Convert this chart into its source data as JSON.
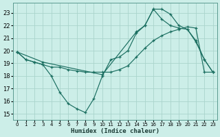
{
  "xlabel": "Humidex (Indice chaleur)",
  "bg_color": "#cceee8",
  "grid_color": "#aad4cc",
  "line_color": "#1a6e60",
  "xlim": [
    -0.5,
    23.5
  ],
  "ylim": [
    14.5,
    23.8
  ],
  "yticks": [
    15,
    16,
    17,
    18,
    19,
    20,
    21,
    22,
    23
  ],
  "xticks": [
    0,
    1,
    2,
    3,
    4,
    5,
    6,
    7,
    8,
    9,
    10,
    11,
    12,
    13,
    14,
    15,
    16,
    17,
    18,
    19,
    20,
    21,
    22,
    23
  ],
  "line1_x": [
    0,
    1,
    2,
    3,
    4,
    5,
    6,
    7,
    8,
    9,
    10,
    11,
    12,
    13,
    14,
    15,
    16,
    17,
    18,
    19,
    20,
    21,
    22,
    23
  ],
  "line1_y": [
    19.9,
    19.3,
    19.1,
    18.9,
    18.0,
    16.7,
    15.8,
    15.4,
    15.1,
    16.2,
    18.0,
    19.3,
    19.5,
    20.0,
    21.4,
    22.0,
    23.3,
    23.3,
    22.9,
    22.0,
    21.7,
    20.7,
    19.3,
    18.3
  ],
  "line2_x": [
    0,
    1,
    2,
    3,
    4,
    5,
    6,
    7,
    8,
    9,
    10,
    11,
    12,
    13,
    14,
    15,
    16,
    17,
    18,
    19,
    20,
    21,
    22,
    23
  ],
  "line2_y": [
    19.9,
    19.3,
    19.1,
    18.9,
    18.7,
    18.7,
    18.5,
    18.4,
    18.3,
    18.3,
    18.3,
    18.3,
    18.5,
    18.8,
    19.5,
    20.2,
    20.8,
    21.2,
    21.5,
    21.7,
    21.9,
    21.8,
    18.3,
    18.3
  ],
  "line3_x": [
    0,
    3,
    10,
    14,
    15,
    16,
    17,
    18,
    19,
    20,
    21,
    22,
    23
  ],
  "line3_y": [
    19.9,
    19.1,
    18.1,
    21.5,
    22.0,
    23.3,
    22.5,
    22.0,
    21.8,
    21.7,
    20.8,
    19.3,
    18.3
  ]
}
